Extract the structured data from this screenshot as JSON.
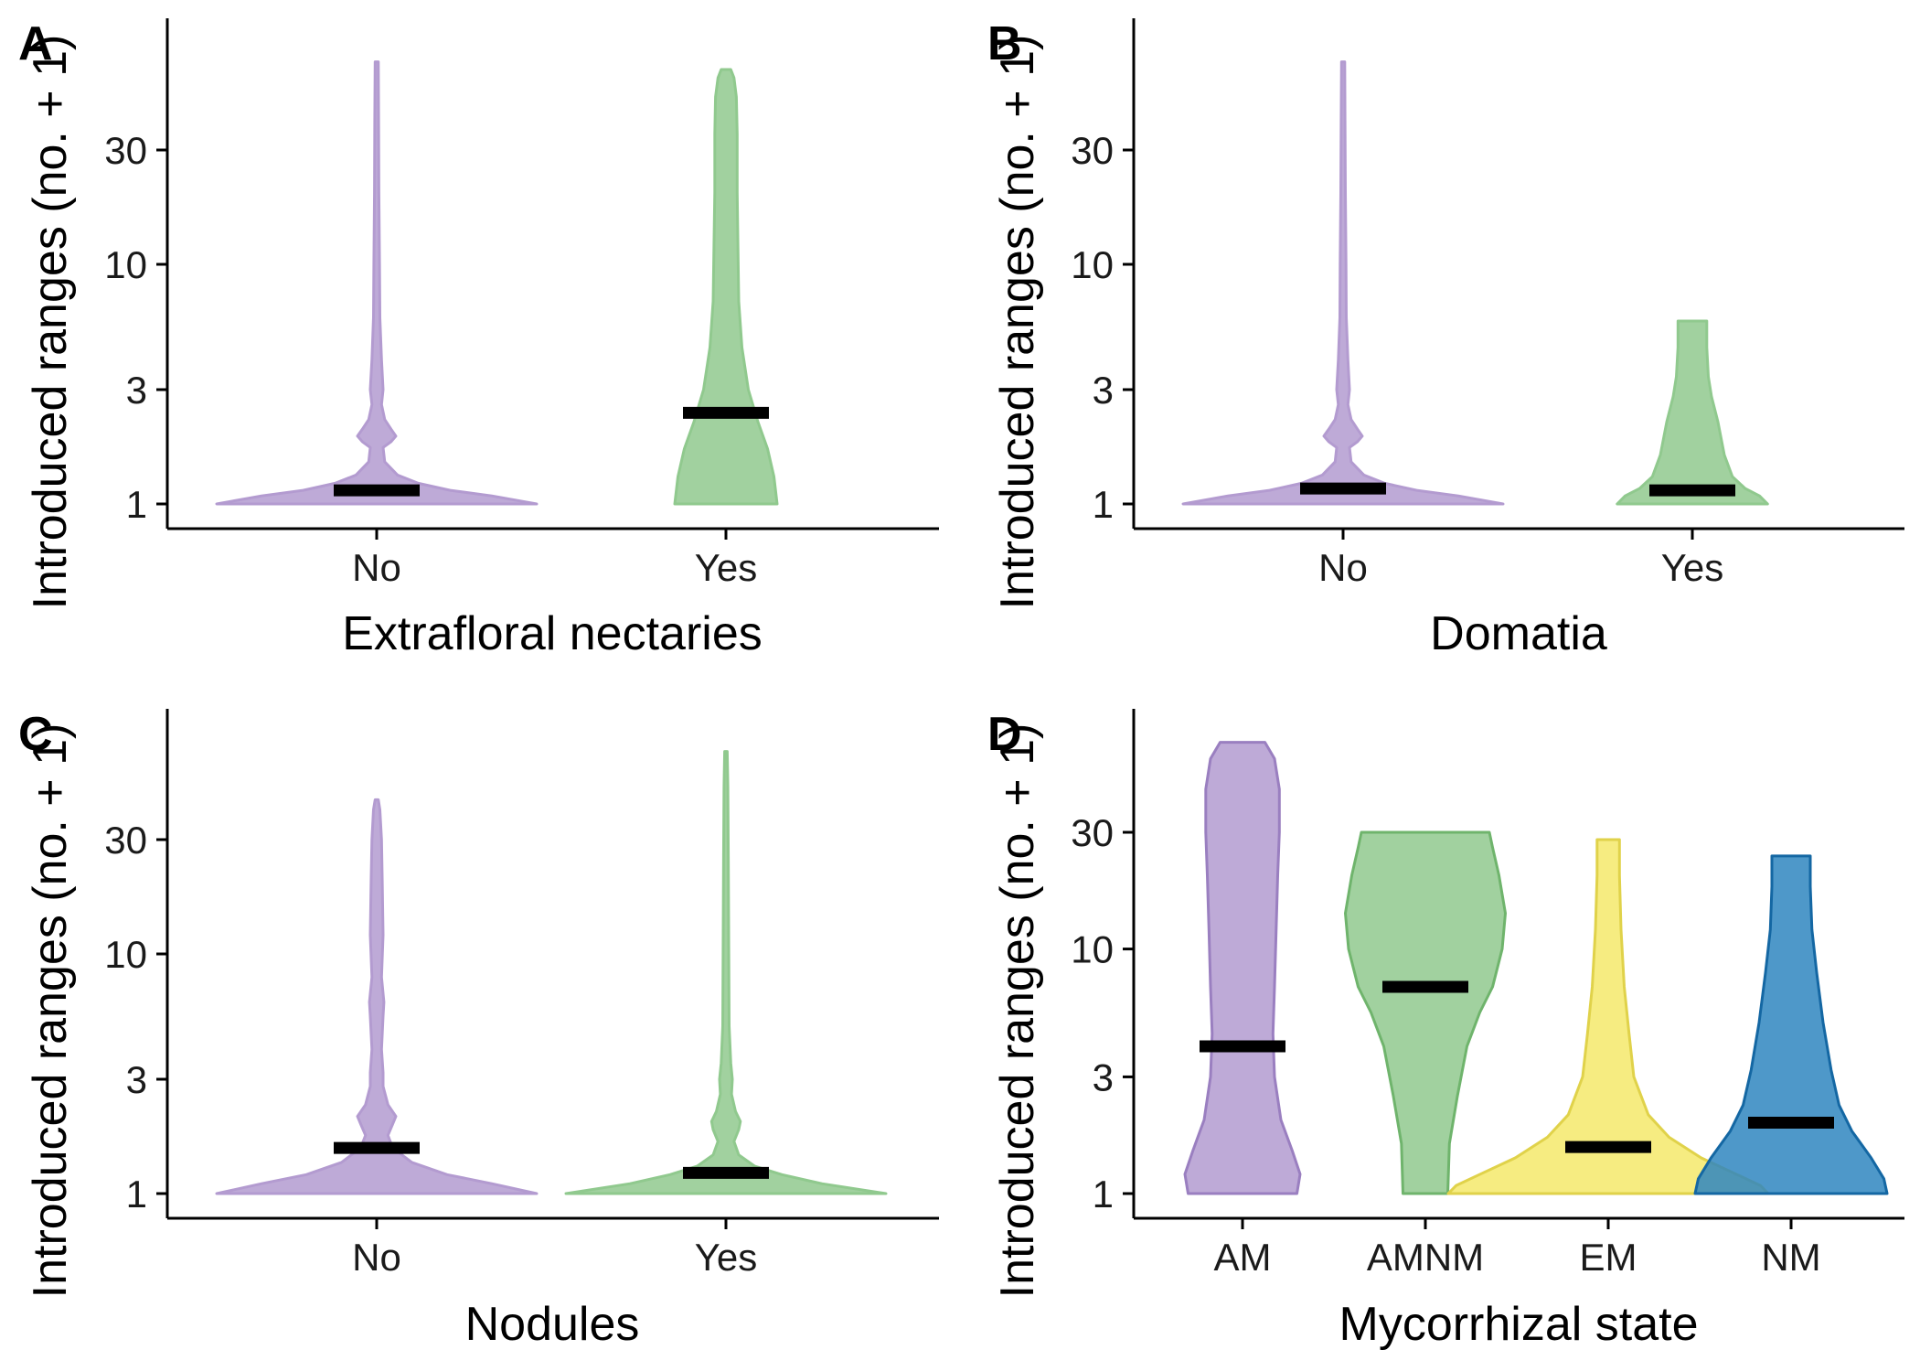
{
  "chart_data": [
    {
      "type": "violin",
      "panel": "A",
      "xlabel": "Extrafloral nectaries",
      "ylabel": "Introduced ranges (no. + 1)",
      "y_scale": "log",
      "ylim": [
        1,
        75
      ],
      "y_ticks": [
        1,
        3,
        10,
        30
      ],
      "categories": [
        "No",
        "Yes"
      ],
      "colors": [
        "#b39bd0",
        "#90c98e"
      ],
      "medians": [
        1.14,
        2.4
      ],
      "maxima": [
        70,
        65
      ],
      "profiles": [
        [
          [
            1,
            1.0
          ],
          [
            1.08,
            0.72
          ],
          [
            1.14,
            0.46
          ],
          [
            1.22,
            0.26
          ],
          [
            1.32,
            0.13
          ],
          [
            1.5,
            0.05
          ],
          [
            1.72,
            0.04
          ],
          [
            1.82,
            0.09
          ],
          [
            1.92,
            0.12
          ],
          [
            2.05,
            0.09
          ],
          [
            2.25,
            0.05
          ],
          [
            2.6,
            0.03
          ],
          [
            3,
            0.04
          ],
          [
            4,
            0.03
          ],
          [
            6,
            0.02
          ],
          [
            10,
            0.018
          ],
          [
            20,
            0.014
          ],
          [
            40,
            0.012
          ],
          [
            70,
            0.01
          ]
        ],
        [
          [
            1,
            0.32
          ],
          [
            1.3,
            0.3
          ],
          [
            1.7,
            0.26
          ],
          [
            2.2,
            0.2
          ],
          [
            3,
            0.14
          ],
          [
            4.5,
            0.1
          ],
          [
            7,
            0.08
          ],
          [
            12,
            0.075
          ],
          [
            20,
            0.07
          ],
          [
            35,
            0.07
          ],
          [
            50,
            0.065
          ],
          [
            60,
            0.05
          ],
          [
            65,
            0.03
          ]
        ]
      ]
    },
    {
      "type": "violin",
      "panel": "B",
      "xlabel": "Domatia",
      "ylabel": "Introduced ranges (no. + 1)",
      "y_scale": "log",
      "ylim": [
        1,
        75
      ],
      "y_ticks": [
        1,
        3,
        10,
        30
      ],
      "categories": [
        "No",
        "Yes"
      ],
      "colors": [
        "#b39bd0",
        "#90c98e"
      ],
      "medians": [
        1.16,
        1.14
      ],
      "maxima": [
        70,
        5.8
      ],
      "profiles": [
        [
          [
            1,
            1.0
          ],
          [
            1.08,
            0.72
          ],
          [
            1.14,
            0.46
          ],
          [
            1.22,
            0.26
          ],
          [
            1.32,
            0.13
          ],
          [
            1.5,
            0.05
          ],
          [
            1.72,
            0.04
          ],
          [
            1.82,
            0.09
          ],
          [
            1.92,
            0.12
          ],
          [
            2.05,
            0.09
          ],
          [
            2.25,
            0.05
          ],
          [
            2.6,
            0.03
          ],
          [
            3,
            0.04
          ],
          [
            4,
            0.03
          ],
          [
            6,
            0.02
          ],
          [
            10,
            0.018
          ],
          [
            20,
            0.014
          ],
          [
            40,
            0.012
          ],
          [
            70,
            0.01
          ]
        ],
        [
          [
            1,
            0.47
          ],
          [
            1.08,
            0.42
          ],
          [
            1.16,
            0.33
          ],
          [
            1.3,
            0.25
          ],
          [
            1.6,
            0.2
          ],
          [
            2.2,
            0.16
          ],
          [
            2.8,
            0.12
          ],
          [
            3.4,
            0.1
          ],
          [
            4.5,
            0.09
          ],
          [
            5.8,
            0.09
          ]
        ]
      ]
    },
    {
      "type": "violin",
      "panel": "C",
      "xlabel": "Nodules",
      "ylabel": "Introduced ranges (no. + 1)",
      "y_scale": "log",
      "ylim": [
        1,
        75
      ],
      "y_ticks": [
        1,
        3,
        10,
        30
      ],
      "categories": [
        "No",
        "Yes"
      ],
      "colors": [
        "#b39bd0",
        "#90c98e"
      ],
      "medians": [
        1.55,
        1.22
      ],
      "maxima": [
        44,
        70
      ],
      "profiles": [
        [
          [
            1,
            1.0
          ],
          [
            1.1,
            0.72
          ],
          [
            1.2,
            0.44
          ],
          [
            1.35,
            0.22
          ],
          [
            1.55,
            0.1
          ],
          [
            1.75,
            0.07
          ],
          [
            1.95,
            0.1
          ],
          [
            2.1,
            0.12
          ],
          [
            2.35,
            0.07
          ],
          [
            2.8,
            0.04
          ],
          [
            3.2,
            0.04
          ],
          [
            4,
            0.03
          ],
          [
            5.5,
            0.04
          ],
          [
            6.3,
            0.045
          ],
          [
            8,
            0.03
          ],
          [
            12,
            0.04
          ],
          [
            20,
            0.035
          ],
          [
            30,
            0.03
          ],
          [
            40,
            0.02
          ],
          [
            44,
            0.01
          ]
        ],
        [
          [
            1,
            1.0
          ],
          [
            1.1,
            0.6
          ],
          [
            1.2,
            0.35
          ],
          [
            1.3,
            0.18
          ],
          [
            1.45,
            0.08
          ],
          [
            1.65,
            0.05
          ],
          [
            1.85,
            0.08
          ],
          [
            2,
            0.09
          ],
          [
            2.2,
            0.06
          ],
          [
            2.6,
            0.035
          ],
          [
            3,
            0.04
          ],
          [
            3.5,
            0.03
          ],
          [
            5,
            0.02
          ],
          [
            10,
            0.018
          ],
          [
            25,
            0.015
          ],
          [
            50,
            0.012
          ],
          [
            70,
            0.008
          ]
        ]
      ]
    },
    {
      "type": "violin",
      "panel": "D",
      "xlabel": "Mycorrhizal state",
      "ylabel": "Introduced ranges (no. + 1)",
      "y_scale": "log",
      "ylim": [
        1,
        75
      ],
      "y_ticks": [
        1,
        3,
        10,
        30
      ],
      "categories": [
        "AM",
        "AMNM",
        "EM",
        "NM"
      ],
      "colors": [
        "#b39bd0",
        "#90c98e",
        "#f5e96b",
        "#2f86bf"
      ],
      "stroke_colors": [
        "#9a7fc0",
        "#6fb46c",
        "#e0d24a",
        "#1467a3"
      ],
      "medians": [
        4.0,
        7.0,
        1.55,
        1.95
      ],
      "maxima": [
        70,
        30,
        28,
        24
      ],
      "profiles": [
        [
          [
            1,
            0.34
          ],
          [
            1.2,
            0.36
          ],
          [
            1.5,
            0.31
          ],
          [
            2,
            0.24
          ],
          [
            3,
            0.2
          ],
          [
            4.5,
            0.19
          ],
          [
            7,
            0.2
          ],
          [
            12,
            0.21
          ],
          [
            20,
            0.22
          ],
          [
            30,
            0.23
          ],
          [
            45,
            0.23
          ],
          [
            60,
            0.2
          ],
          [
            70,
            0.14
          ]
        ],
        [
          [
            1,
            0.14
          ],
          [
            1.6,
            0.15
          ],
          [
            2.5,
            0.2
          ],
          [
            4,
            0.26
          ],
          [
            5.5,
            0.34
          ],
          [
            7,
            0.42
          ],
          [
            10,
            0.48
          ],
          [
            14,
            0.5
          ],
          [
            20,
            0.46
          ],
          [
            26,
            0.42
          ],
          [
            30,
            0.4
          ]
        ],
        [
          [
            1,
            1.0
          ],
          [
            1.08,
            0.95
          ],
          [
            1.2,
            0.8
          ],
          [
            1.4,
            0.58
          ],
          [
            1.7,
            0.38
          ],
          [
            2.1,
            0.25
          ],
          [
            3,
            0.16
          ],
          [
            4.5,
            0.13
          ],
          [
            7,
            0.1
          ],
          [
            12,
            0.08
          ],
          [
            20,
            0.07
          ],
          [
            28,
            0.07
          ]
        ],
        [
          [
            1,
            0.6
          ],
          [
            1.15,
            0.58
          ],
          [
            1.4,
            0.5
          ],
          [
            1.8,
            0.38
          ],
          [
            2.3,
            0.3
          ],
          [
            3.2,
            0.25
          ],
          [
            5,
            0.2
          ],
          [
            8,
            0.16
          ],
          [
            12,
            0.13
          ],
          [
            18,
            0.12
          ],
          [
            24,
            0.12
          ]
        ]
      ]
    }
  ]
}
